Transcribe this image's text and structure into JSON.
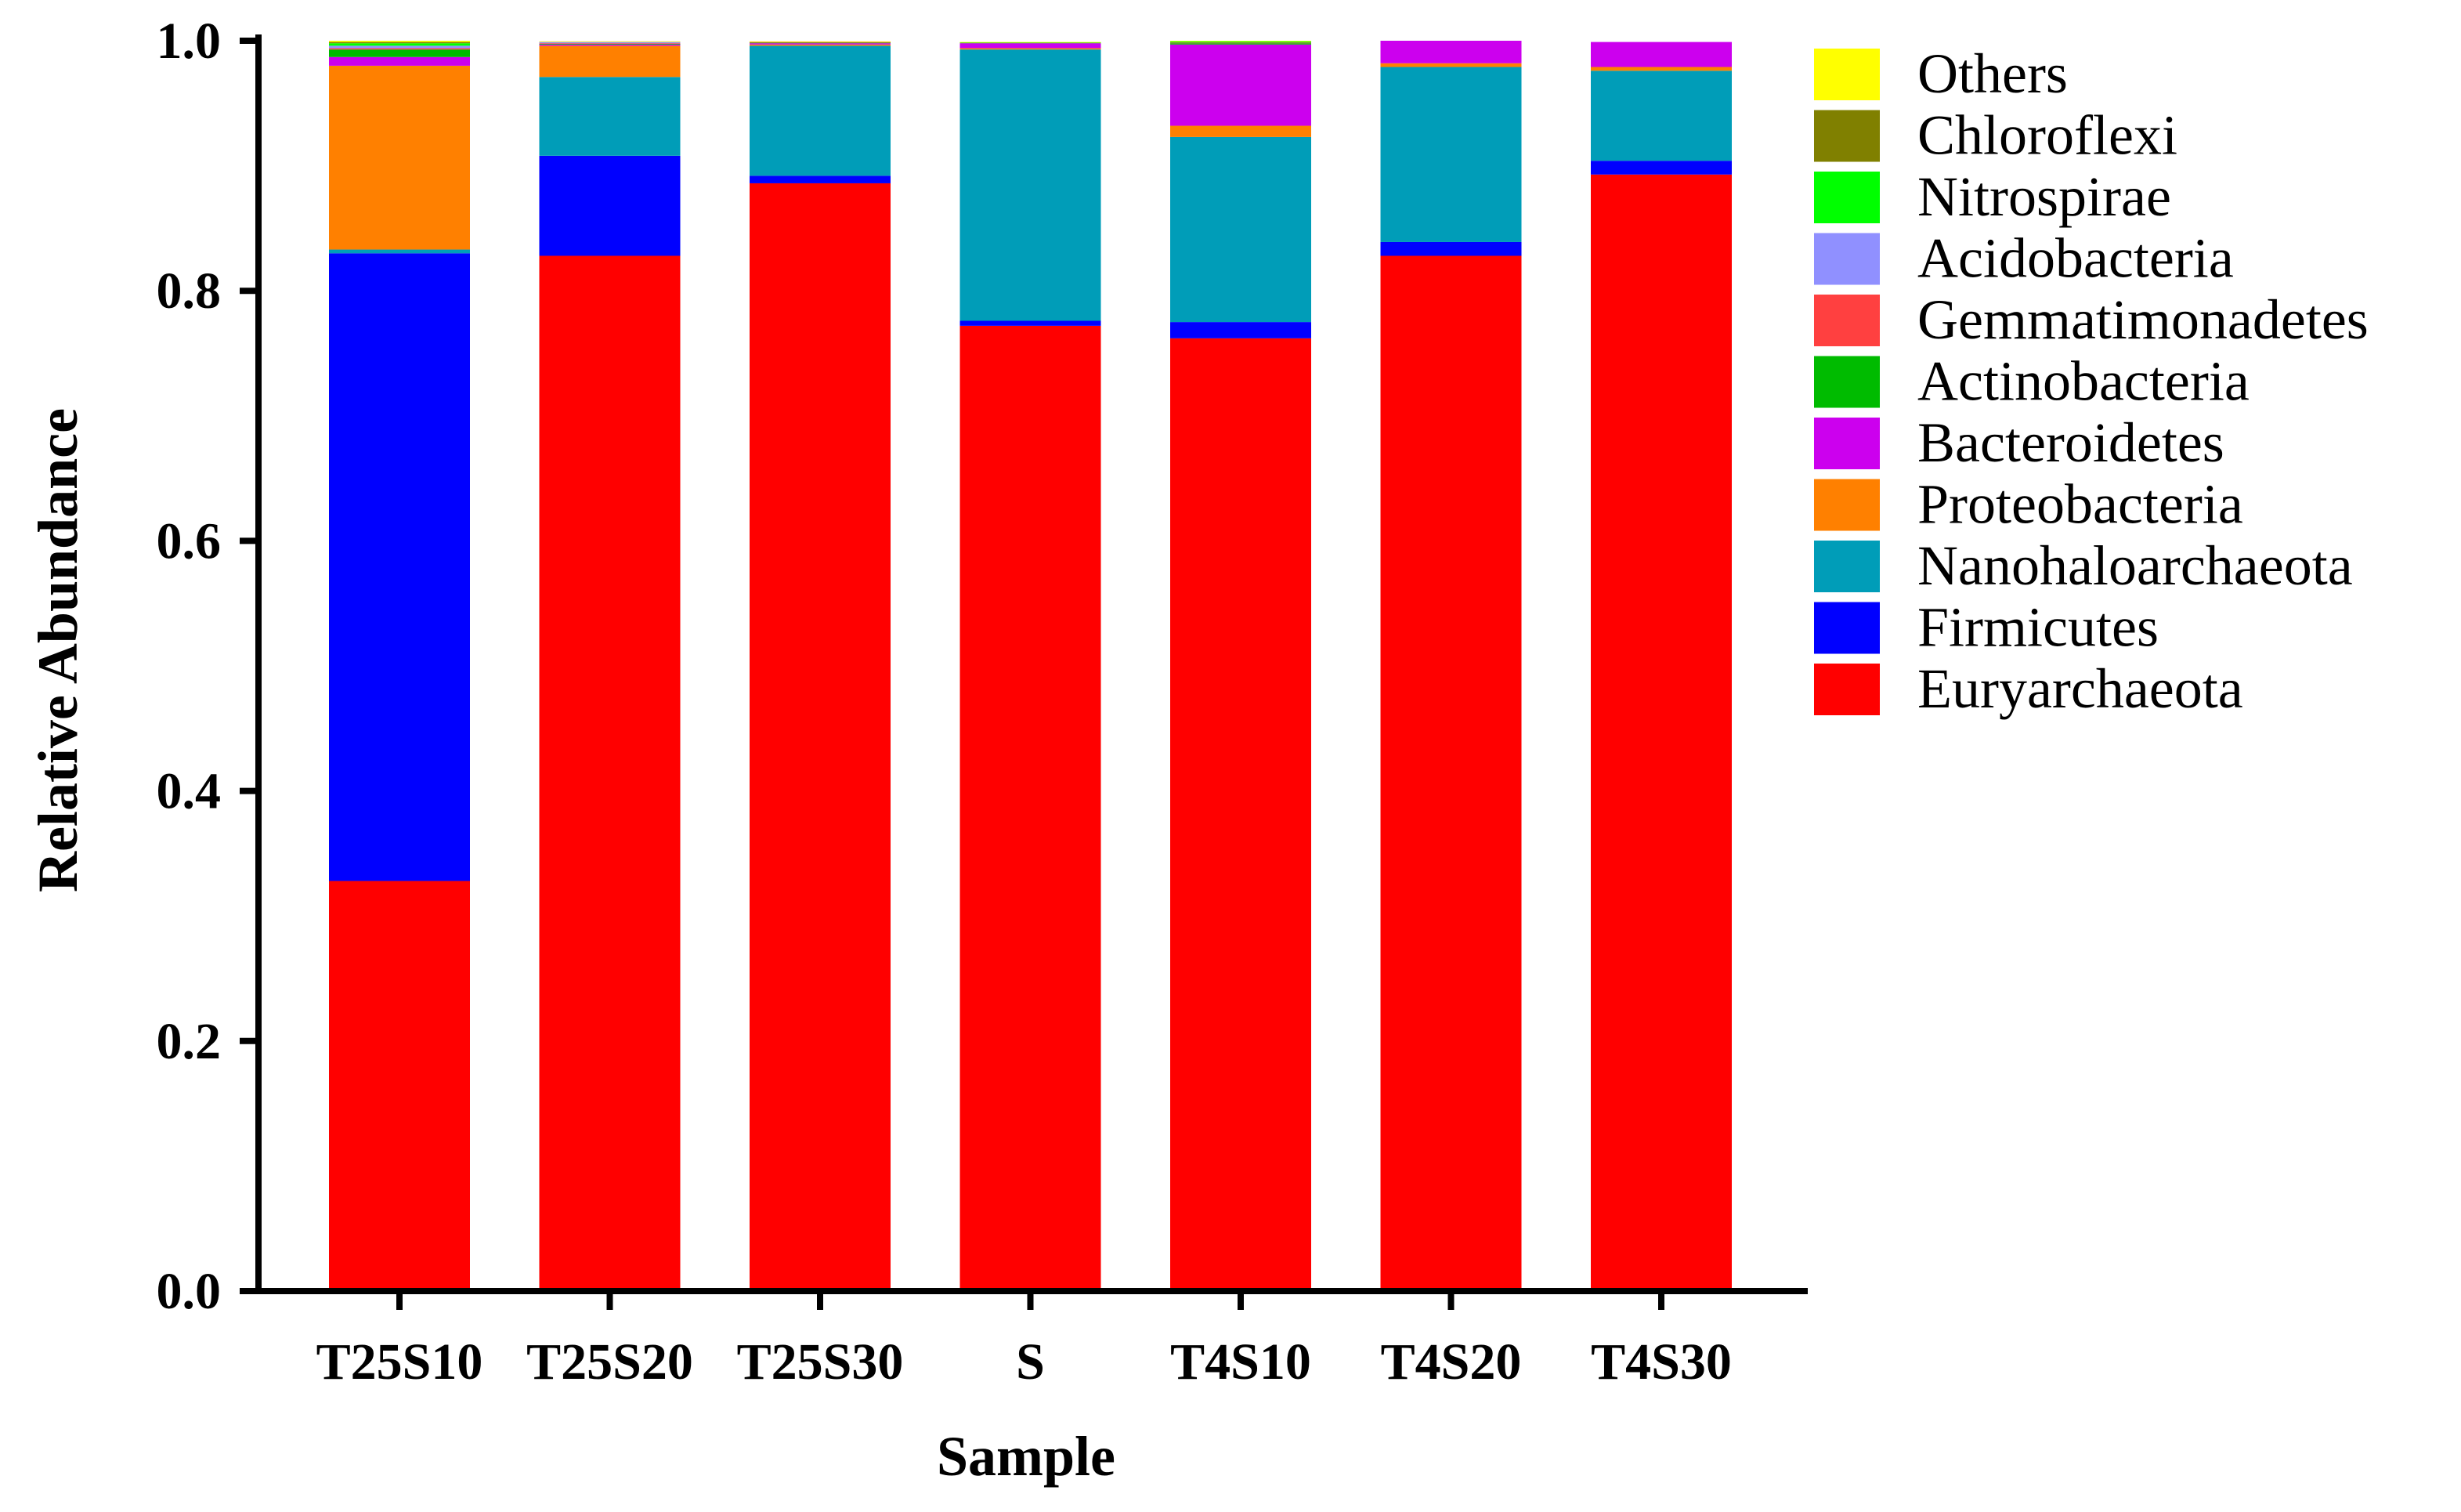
{
  "chart_data": {
    "type": "bar",
    "stacked": true,
    "title": "",
    "xlabel": "Sample",
    "ylabel": "Relative Abundance",
    "ylim": [
      0,
      1.0
    ],
    "yticks": [
      "0.0",
      "0.2",
      "0.4",
      "0.6",
      "0.8",
      "1.0"
    ],
    "categories": [
      "T25S10",
      "T25S20",
      "T25S30",
      "S",
      "T4S10",
      "T4S20",
      "T4S30"
    ],
    "legend_position": "right",
    "series": [
      {
        "name": "Euryarchaeota",
        "color": "#FF0000",
        "values": [
          0.328,
          0.828,
          0.886,
          0.772,
          0.762,
          0.828,
          0.893
        ]
      },
      {
        "name": "Firmicutes",
        "color": "#0000FF",
        "values": [
          0.502,
          0.08,
          0.006,
          0.004,
          0.013,
          0.011,
          0.011
        ]
      },
      {
        "name": "Nanohaloarchaeota",
        "color": "#009DB8",
        "values": [
          0.003,
          0.063,
          0.104,
          0.217,
          0.148,
          0.14,
          0.072
        ]
      },
      {
        "name": "Proteobacteria",
        "color": "#FF8000",
        "values": [
          0.147,
          0.025,
          0.001,
          0.001,
          0.009,
          0.003,
          0.003
        ]
      },
      {
        "name": "Bacteroidetes",
        "color": "#CC00EE",
        "values": [
          0.007,
          0.001,
          0.001,
          0.004,
          0.065,
          0.018,
          0.02
        ]
      },
      {
        "name": "Actinobacteria",
        "color": "#00BB00",
        "values": [
          0.006,
          0.0005,
          0.0005,
          0.0005,
          0.001,
          0.0,
          0.0
        ]
      },
      {
        "name": "Gemmatimonadetes",
        "color": "#FF4040",
        "values": [
          0.001,
          0.0005,
          0.0005,
          0.0,
          0.0005,
          0.0,
          0.0
        ]
      },
      {
        "name": "Acidobacteria",
        "color": "#9090FF",
        "values": [
          0.002,
          0.001,
          0.0,
          0.0,
          0.0,
          0.0,
          0.0
        ]
      },
      {
        "name": "Nitrospirae",
        "color": "#00FF00",
        "values": [
          0.002,
          0.0,
          0.0,
          0.0,
          0.001,
          0.0,
          0.0
        ]
      },
      {
        "name": "Chloroflexi",
        "color": "#808000",
        "values": [
          0.001,
          0.0,
          0.0,
          0.0,
          0.0,
          0.0,
          0.0
        ]
      },
      {
        "name": "Others",
        "color": "#FFFF00",
        "values": [
          0.001,
          0.0005,
          0.0005,
          0.0005,
          0.0005,
          0.0,
          0.0
        ]
      }
    ]
  }
}
